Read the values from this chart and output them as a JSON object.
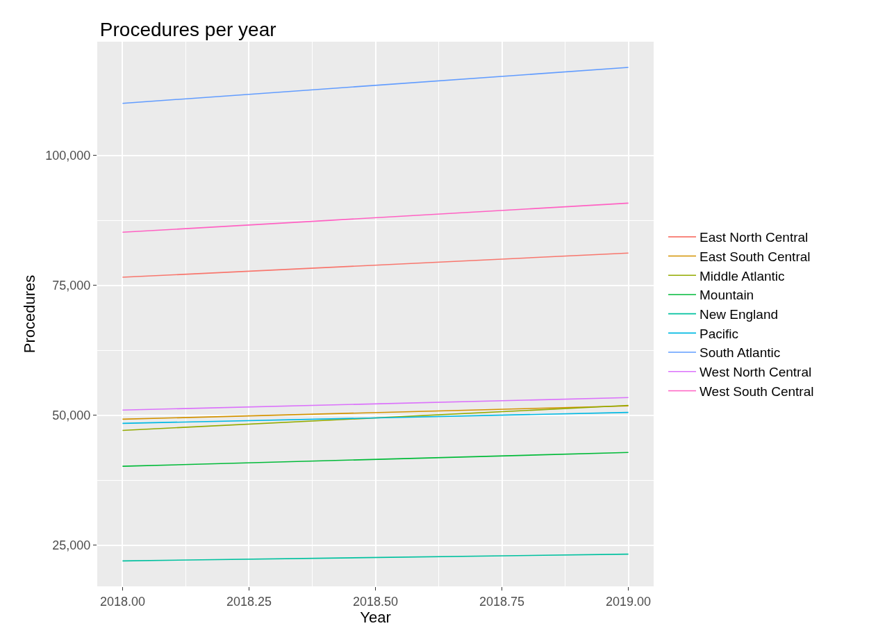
{
  "chart_data": {
    "type": "line",
    "title": "Procedures per year",
    "xlabel": "Year",
    "ylabel": "Procedures",
    "x": [
      2018,
      2019
    ],
    "xlim": [
      2017.95,
      2019.05
    ],
    "xticks": [
      {
        "value": 2018,
        "label": "2018.00"
      },
      {
        "value": 2018.25,
        "label": "2018.25"
      },
      {
        "value": 2018.5,
        "label": "2018.50"
      },
      {
        "value": 2018.75,
        "label": "2018.75"
      },
      {
        "value": 2019,
        "label": "2019.00"
      }
    ],
    "ylim": [
      17100,
      121850
    ],
    "yticks": [
      {
        "value": 25000,
        "label": "25,000"
      },
      {
        "value": 50000,
        "label": "50,000"
      },
      {
        "value": 75000,
        "label": "75,000"
      },
      {
        "value": 100000,
        "label": "100,000"
      }
    ],
    "grid": true,
    "legend": "right",
    "marker": "none",
    "line_style": "solid",
    "series": [
      {
        "name": "East North Central",
        "color": "#f8766d",
        "values": [
          76550,
          81200
        ]
      },
      {
        "name": "East South Central",
        "color": "#d39200",
        "values": [
          49250,
          51800
        ]
      },
      {
        "name": "Middle Atlantic",
        "color": "#93aa00",
        "values": [
          47100,
          51900
        ]
      },
      {
        "name": "Mountain",
        "color": "#00ba38",
        "values": [
          40200,
          42850
        ]
      },
      {
        "name": "New England",
        "color": "#00c19f",
        "values": [
          22000,
          23300
        ]
      },
      {
        "name": "Pacific",
        "color": "#00b9e3",
        "values": [
          48450,
          50550
        ]
      },
      {
        "name": "South Atlantic",
        "color": "#619cff",
        "values": [
          110000,
          116900
        ]
      },
      {
        "name": "West North Central",
        "color": "#db72fb",
        "values": [
          51000,
          53400
        ]
      },
      {
        "name": "West South Central",
        "color": "#ff61c3",
        "values": [
          85200,
          90800
        ]
      }
    ]
  }
}
